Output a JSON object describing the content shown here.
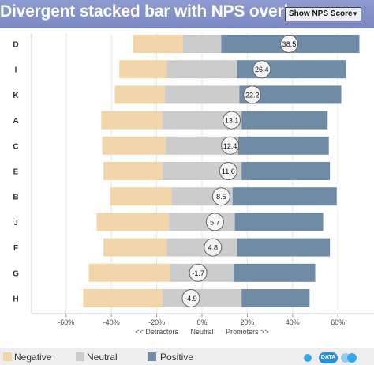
{
  "header": {
    "title": "Divergent stacked bar with NPS overlay",
    "toggle_label": "Show NPS Score"
  },
  "colors": {
    "negative": "#f2d5a8",
    "neutral": "#cccccc",
    "positive": "#6f8ba6",
    "header": "#8e9bd0"
  },
  "chart_data": {
    "type": "bar",
    "orientation": "horizontal-divergent",
    "categories": [
      "D",
      "I",
      "K",
      "A",
      "C",
      "E",
      "B",
      "J",
      "F",
      "G",
      "H"
    ],
    "series": [
      {
        "name": "Negative",
        "values": [
          22,
          21,
          22,
          27,
          28,
          26,
          27,
          32,
          28,
          36,
          35
        ]
      },
      {
        "name": "Neutral",
        "values": [
          17,
          31,
          33,
          35,
          32,
          35,
          27,
          29,
          31,
          28,
          35
        ]
      },
      {
        "name": "Positive",
        "values": [
          61,
          48,
          45,
          38,
          40,
          39,
          46,
          39,
          41,
          36,
          30
        ]
      }
    ],
    "nps": [
      38.5,
      26.4,
      22.2,
      13.1,
      12.4,
      11.6,
      8.5,
      5.7,
      4.8,
      -1.7,
      -4.9
    ],
    "xlim": [
      -70,
      70
    ],
    "xticks": [
      -60,
      -40,
      -20,
      0,
      20,
      40,
      60
    ],
    "xtick_labels": [
      "-60%",
      "-40%",
      "-20%",
      "0%",
      "20%",
      "40%",
      "60%"
    ],
    "axis_annotations": {
      "left": "<< Detractors",
      "center": "Neutral",
      "right": "Promoters >>"
    },
    "grid": true,
    "legend": {
      "position": "bottom",
      "entries": [
        "Negative",
        "Neutral",
        "Positive"
      ]
    }
  },
  "footer": {
    "logo_text": "DATA"
  }
}
